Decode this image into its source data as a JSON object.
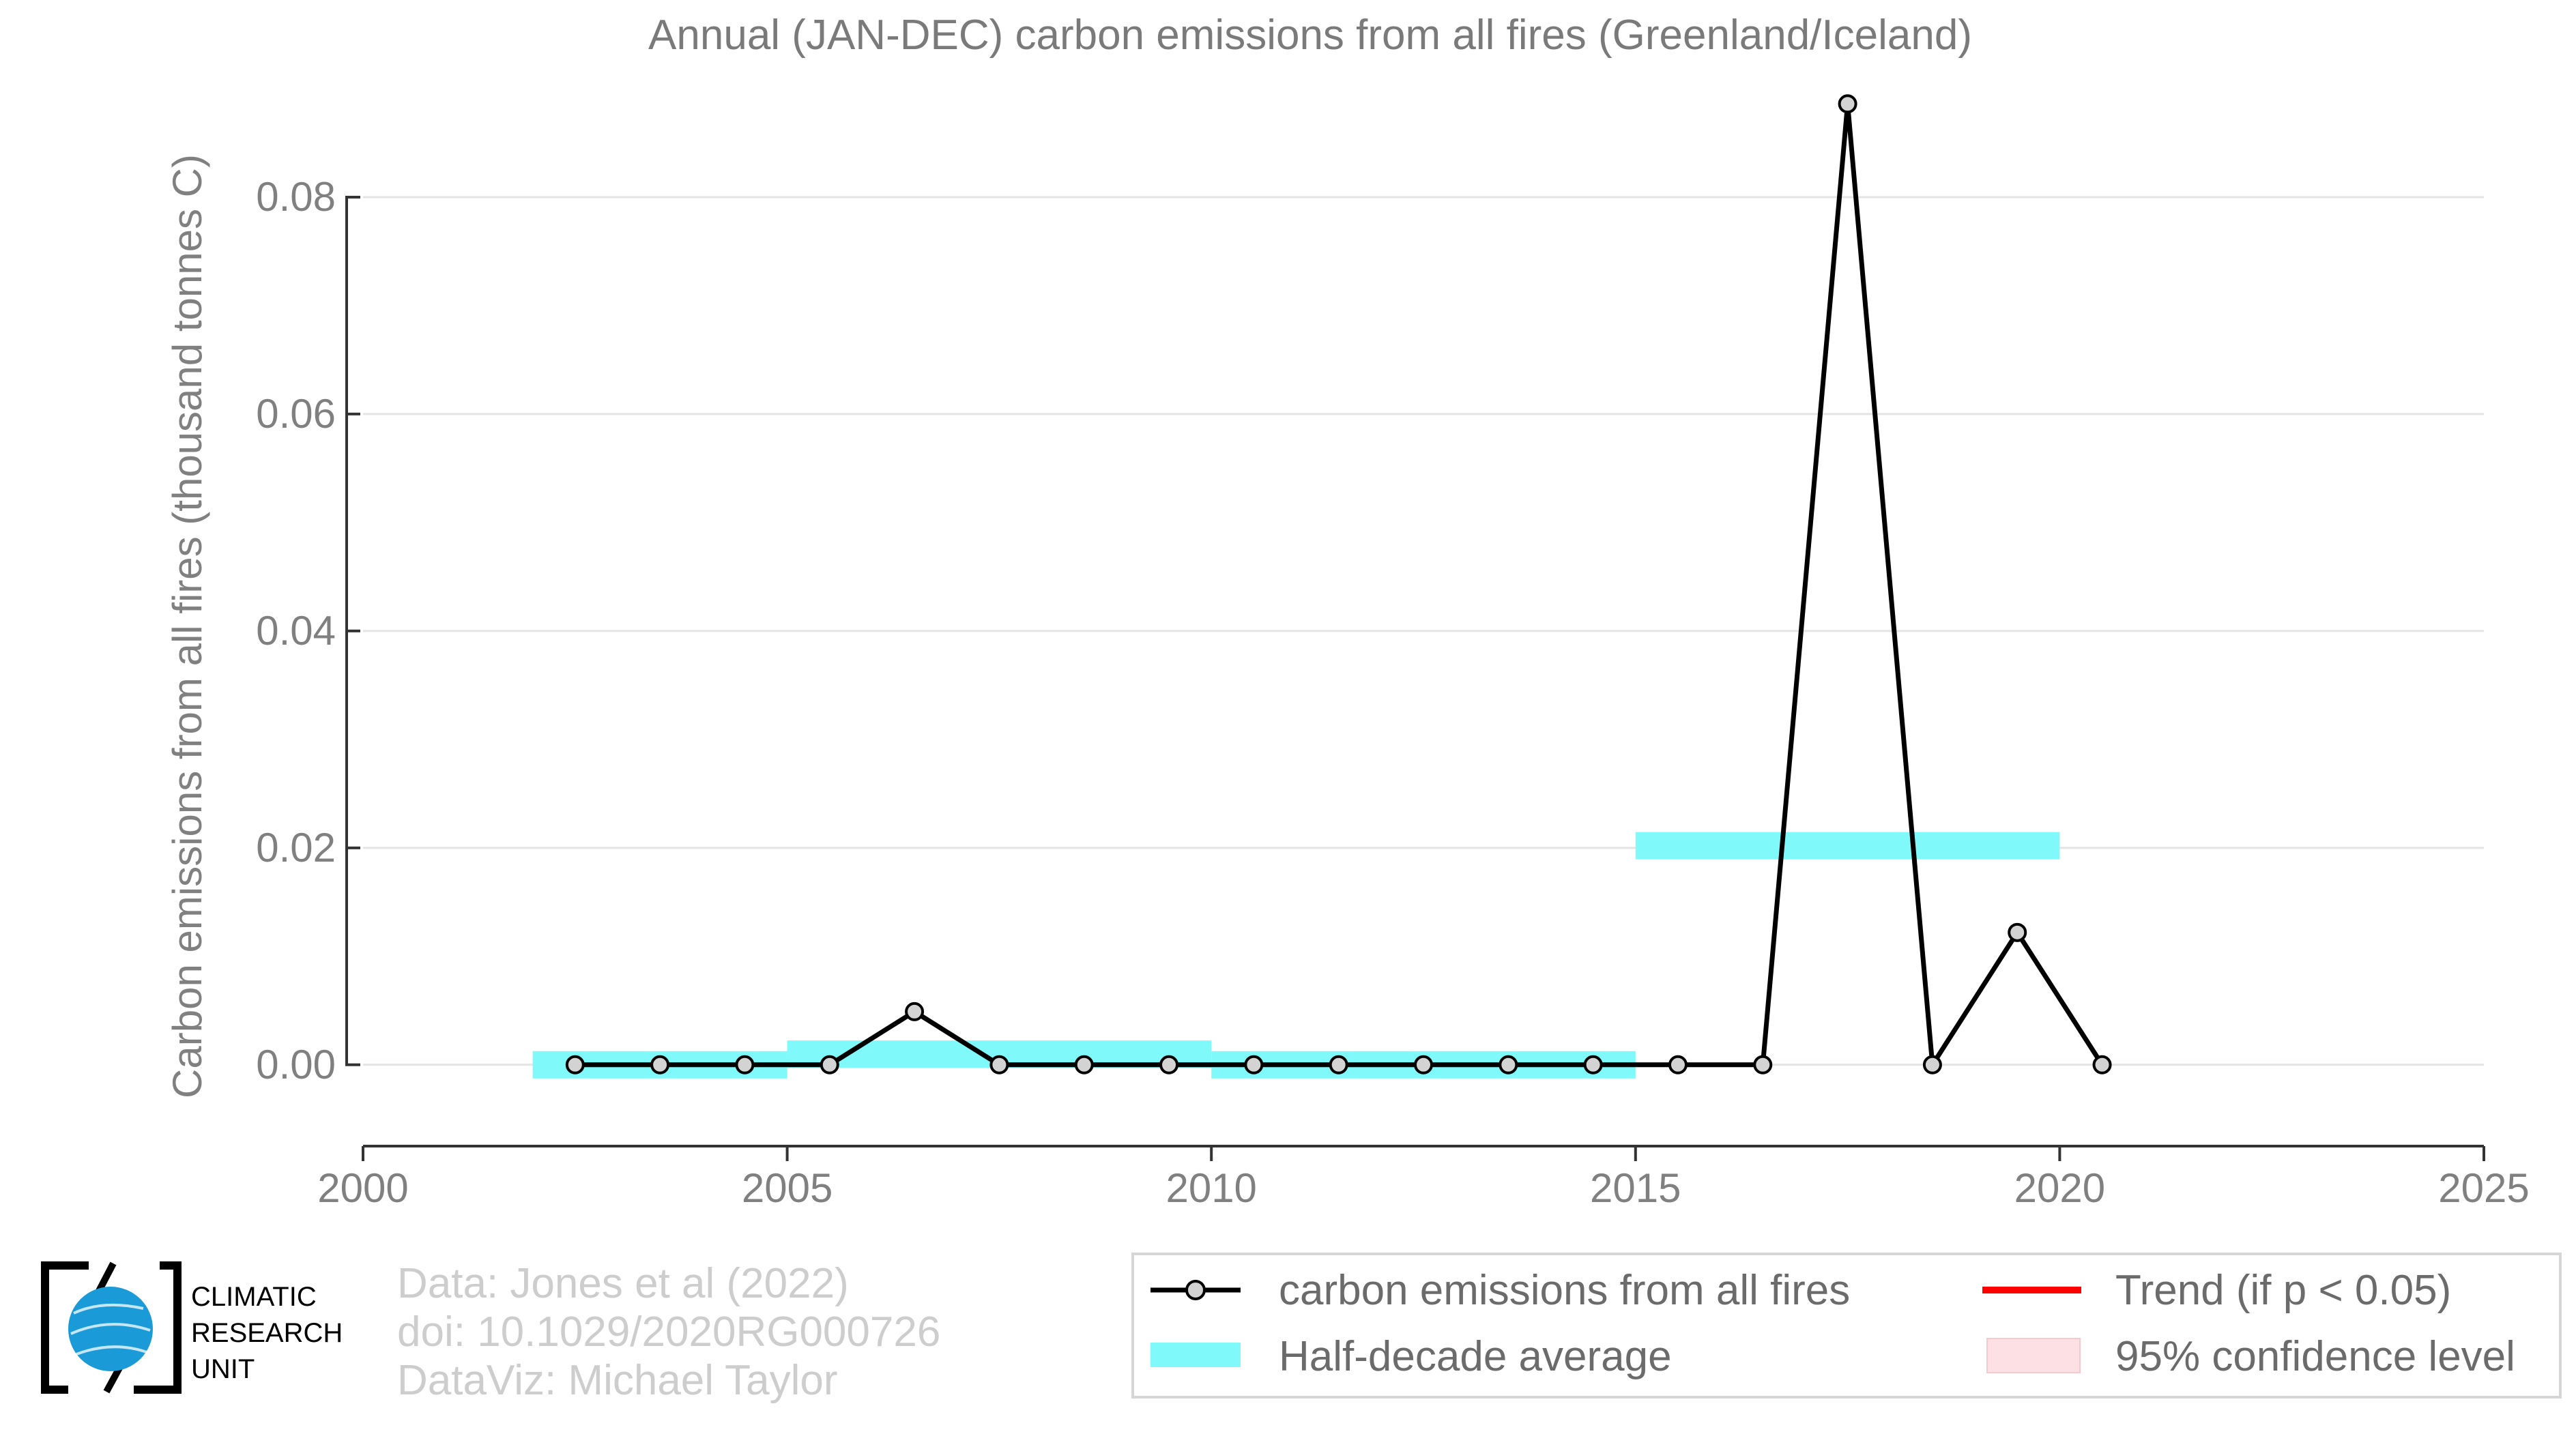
{
  "chart_data": {
    "type": "line",
    "title": "Annual (JAN-DEC) carbon emissions from all fires (Greenland/Iceland)",
    "xlabel": "",
    "ylabel": "Carbon emissions from all fires (thousand tonnes C)",
    "xlim": [
      2000,
      2025
    ],
    "ylim": [
      -0.0075,
      0.09
    ],
    "x_ticks": [
      "2000",
      "2005",
      "2010",
      "2015",
      "2020",
      "2025"
    ],
    "y_ticks": [
      "0.00",
      "0.02",
      "0.04",
      "0.06",
      "0.08"
    ],
    "grid": "horizontal",
    "series": [
      {
        "name": "carbon emissions from all fires",
        "color": "#000000",
        "marker_fill": "#d3d3d3",
        "x": [
          2002.5,
          2003.5,
          2004.5,
          2005.5,
          2006.5,
          2007.5,
          2008.5,
          2009.5,
          2010.5,
          2011.5,
          2012.5,
          2013.5,
          2014.5,
          2015.5,
          2016.5,
          2017.5,
          2018.5,
          2019.5,
          2020.5
        ],
        "y": [
          0.0,
          0.0,
          0.0,
          0.0,
          0.0049,
          0.0,
          0.0,
          0.0,
          0.0,
          0.0,
          0.0,
          0.0,
          0.0,
          0.0,
          0.0,
          0.0886,
          0.0,
          0.0122,
          0.0
        ]
      }
    ],
    "half_decade_average": {
      "name": "Half-decade average",
      "color": "#7ff9f9",
      "segments": [
        {
          "x0": 2002,
          "x1": 2005,
          "y": 0.0
        },
        {
          "x0": 2005,
          "x1": 2010,
          "y": 0.00098
        },
        {
          "x0": 2010,
          "x1": 2015,
          "y": 0.0
        },
        {
          "x0": 2015,
          "x1": 2020,
          "y": 0.0202
        }
      ]
    },
    "legend": {
      "placement": "bottom-right",
      "entries": [
        {
          "label": "carbon emissions from all fires",
          "kind": "line-marker",
          "color": "#000000"
        },
        {
          "label": "Trend (if p < 0.05)",
          "kind": "line",
          "color": "#ff0000"
        },
        {
          "label": "Half-decade average",
          "kind": "band",
          "color": "#7ff9f9"
        },
        {
          "label": "95% confidence level",
          "kind": "box",
          "color": "#fde0e3"
        }
      ]
    }
  },
  "credits": {
    "line1": "Data: Jones et al (2022)",
    "line2": "doi: 10.1029/2020RG000726",
    "line3": "DataViz: Michael Taylor"
  },
  "logo": {
    "line1": "CLIMATIC",
    "line2": "RESEARCH",
    "line3": "UNIT",
    "globe_color": "#1a9bd7"
  }
}
